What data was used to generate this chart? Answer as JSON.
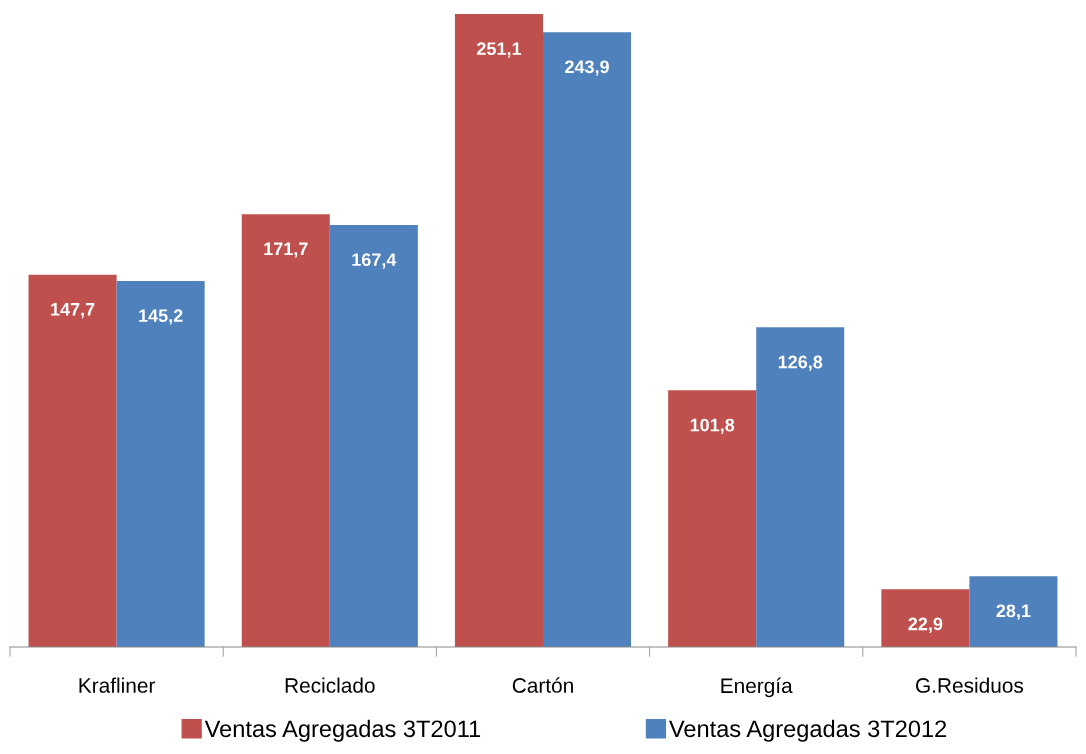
{
  "chart_data": {
    "type": "bar",
    "relative": false,
    "categories": [
      "Krafliner",
      "Reciclado",
      "Cartón",
      "Energía",
      "G.Residuos"
    ],
    "series": [
      {
        "name": "Ventas Agregadas 3T2011",
        "color": "#c0504d",
        "values": [
          147.7,
          171.7,
          251.1,
          101.8,
          22.9
        ],
        "value_labels": [
          "147,7",
          "171,7",
          "251,1",
          "101,8",
          "22,9"
        ]
      },
      {
        "name": "Ventas Agregadas 3T2012",
        "color": "#4f81bd",
        "values": [
          145.2,
          167.4,
          243.9,
          126.8,
          28.1
        ],
        "value_labels": [
          "145,2",
          "167,4",
          "243,9",
          "126,8",
          "28,1"
        ]
      }
    ],
    "legend": "bottom",
    "grid": false,
    "tick_labels": "x"
  }
}
